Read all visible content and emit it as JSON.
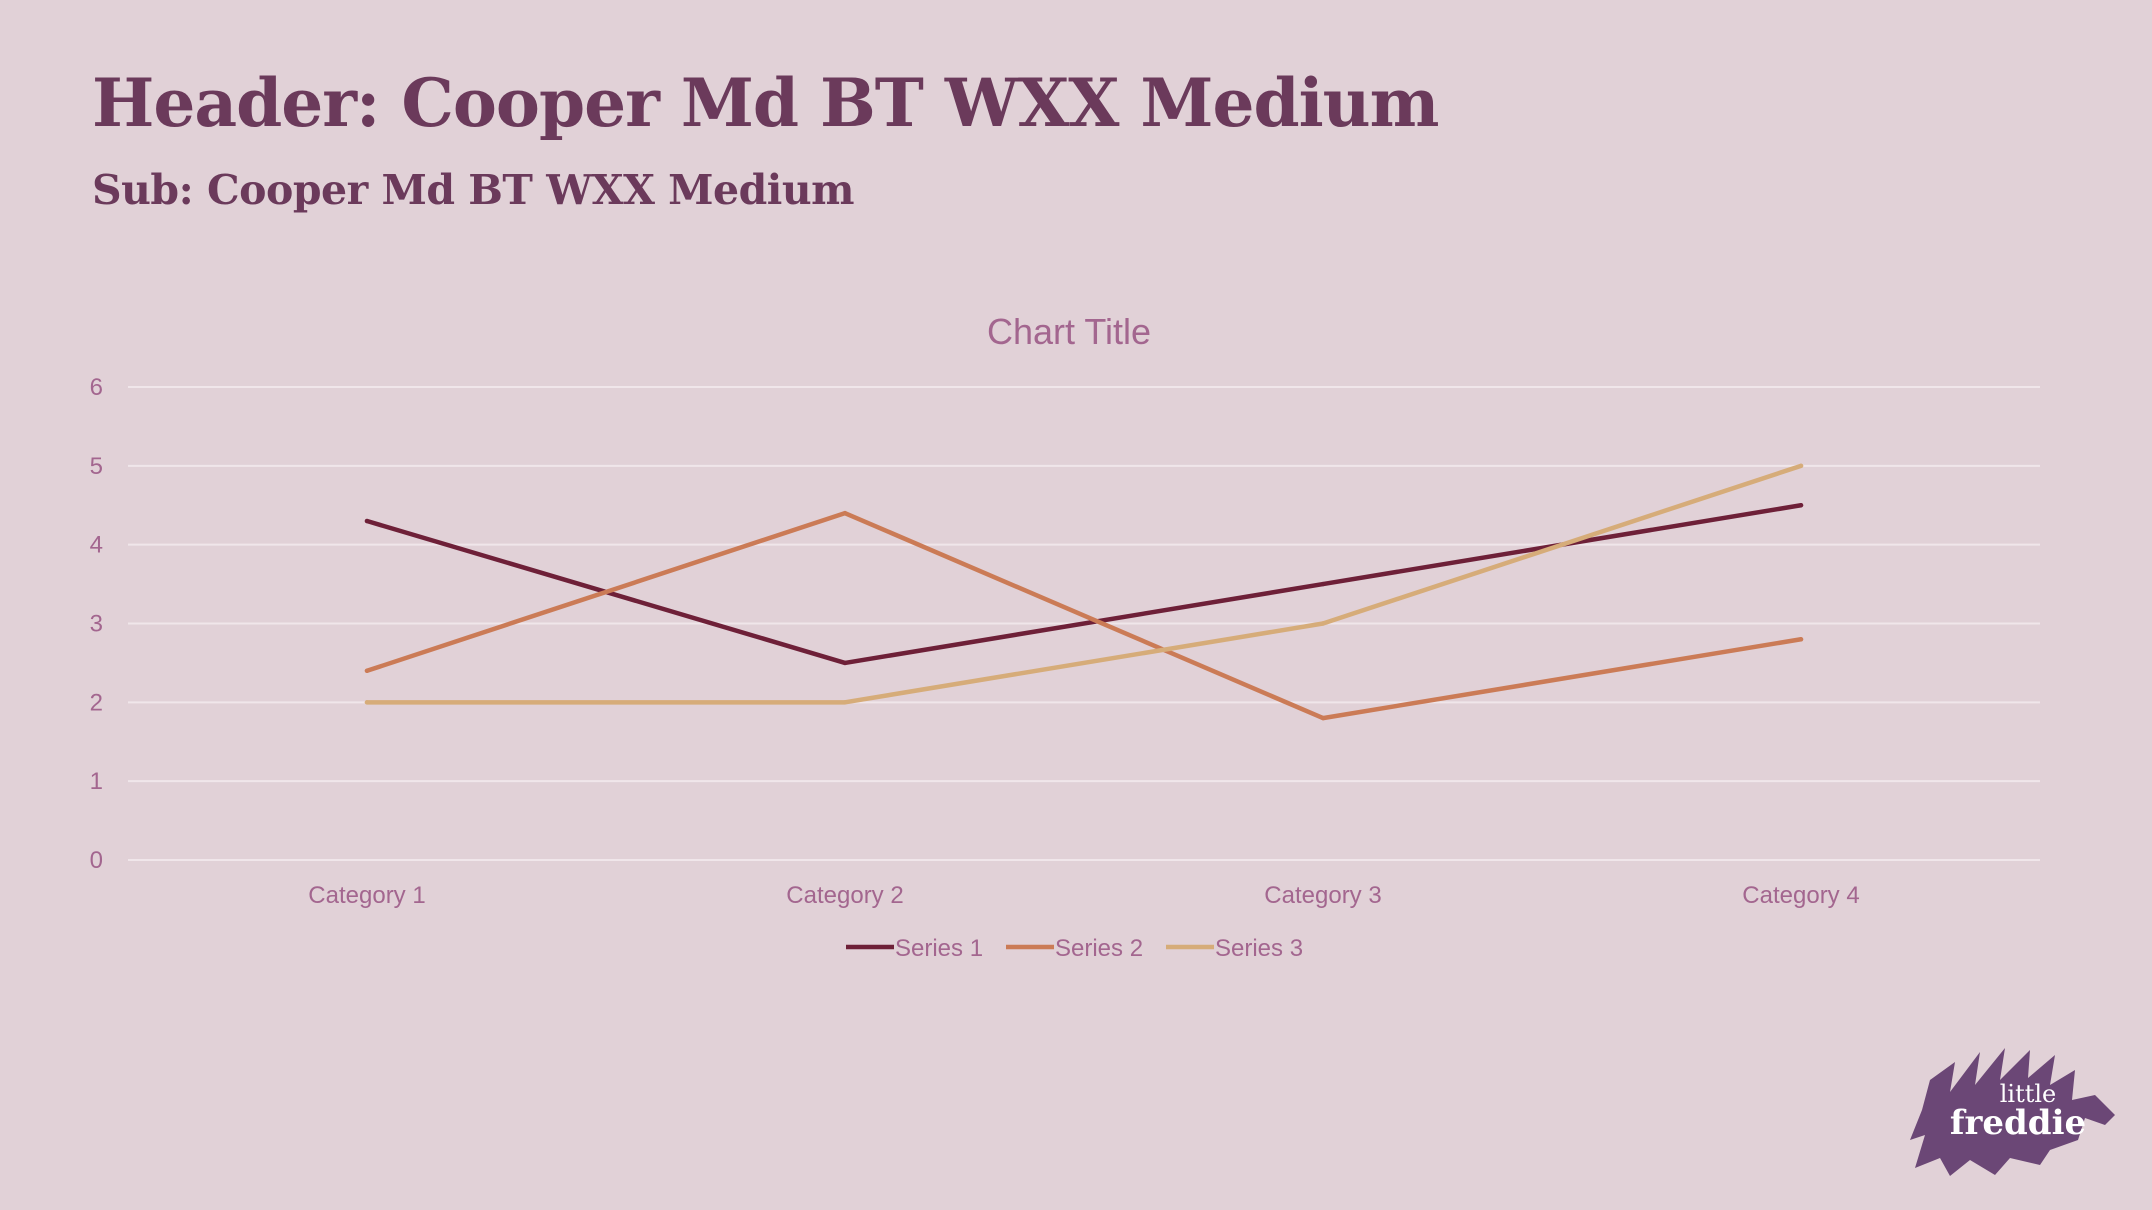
{
  "slide": {
    "header": "Header: Cooper Md BT WXX Medium",
    "sub": "Sub: Cooper Md BT WXX Medium"
  },
  "colors": {
    "background": "#e1d1d7",
    "heading": "#6b3a5b",
    "axis_text": "#a3668f",
    "gridline": "#f0e6ea",
    "logo": "#6b4776"
  },
  "logo": {
    "line1": "little",
    "line2": "freddie"
  },
  "chart_data": {
    "type": "line",
    "title": "Chart Title",
    "categories": [
      "Category 1",
      "Category 2",
      "Category 3",
      "Category 4"
    ],
    "series": [
      {
        "name": "Series 1",
        "values": [
          4.3,
          2.5,
          3.5,
          4.5
        ],
        "color": "#6e2038"
      },
      {
        "name": "Series 2",
        "values": [
          2.4,
          4.4,
          1.8,
          2.8
        ],
        "color": "#cb7b56"
      },
      {
        "name": "Series 3",
        "values": [
          2,
          2,
          3,
          5
        ],
        "color": "#d6ac79"
      }
    ],
    "yticks": [
      "0",
      "1",
      "2",
      "3",
      "4",
      "5",
      "6"
    ],
    "ylim": [
      0,
      6
    ],
    "grid": true,
    "legend": "bottom"
  }
}
